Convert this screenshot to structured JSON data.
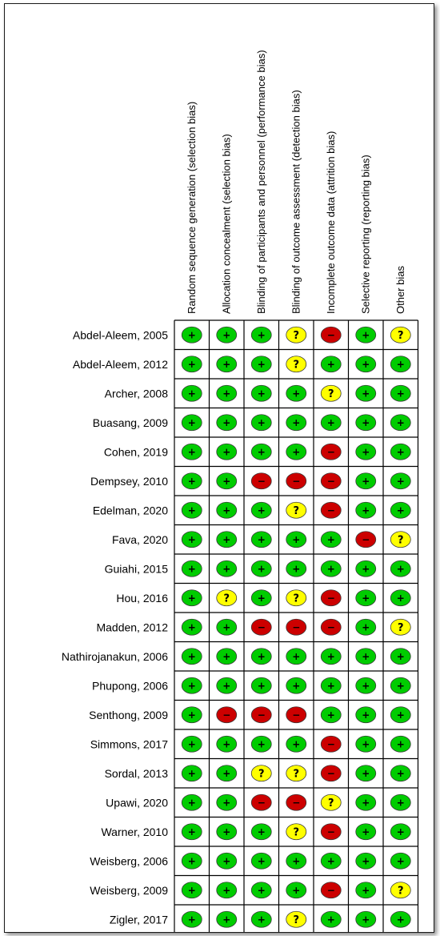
{
  "chart_data": {
    "type": "table",
    "columns": [
      "Random sequence generation (selection bias)",
      "Allocation concealment (selection bias)",
      "Blinding of participants and personnel (performance bias)",
      "Blinding of outcome assessment (detection bias)",
      "Incomplete outcome data (attrition bias)",
      "Selective reporting (reporting bias)",
      "Other bias"
    ],
    "rows": [
      {
        "study": "Abdel-Aleem, 2005",
        "ratings": [
          "low",
          "low",
          "low",
          "unclear",
          "high",
          "low",
          "unclear"
        ]
      },
      {
        "study": "Abdel-Aleem, 2012",
        "ratings": [
          "low",
          "low",
          "low",
          "unclear",
          "low",
          "low",
          "low"
        ]
      },
      {
        "study": "Archer, 2008",
        "ratings": [
          "low",
          "low",
          "low",
          "low",
          "unclear",
          "low",
          "low"
        ]
      },
      {
        "study": "Buasang, 2009",
        "ratings": [
          "low",
          "low",
          "low",
          "low",
          "low",
          "low",
          "low"
        ]
      },
      {
        "study": "Cohen, 2019",
        "ratings": [
          "low",
          "low",
          "low",
          "low",
          "high",
          "low",
          "low"
        ]
      },
      {
        "study": "Dempsey, 2010",
        "ratings": [
          "low",
          "low",
          "high",
          "high",
          "high",
          "low",
          "low"
        ]
      },
      {
        "study": "Edelman, 2020",
        "ratings": [
          "low",
          "low",
          "low",
          "unclear",
          "high",
          "low",
          "low"
        ]
      },
      {
        "study": "Fava, 2020",
        "ratings": [
          "low",
          "low",
          "low",
          "low",
          "low",
          "high",
          "unclear"
        ]
      },
      {
        "study": "Guiahi, 2015",
        "ratings": [
          "low",
          "low",
          "low",
          "low",
          "low",
          "low",
          "low"
        ]
      },
      {
        "study": "Hou, 2016",
        "ratings": [
          "low",
          "unclear",
          "low",
          "unclear",
          "high",
          "low",
          "low"
        ]
      },
      {
        "study": "Madden, 2012",
        "ratings": [
          "low",
          "low",
          "high",
          "high",
          "high",
          "low",
          "unclear"
        ]
      },
      {
        "study": "Nathirojanakun, 2006",
        "ratings": [
          "low",
          "low",
          "low",
          "low",
          "low",
          "low",
          "low"
        ]
      },
      {
        "study": "Phupong, 2006",
        "ratings": [
          "low",
          "low",
          "low",
          "low",
          "low",
          "low",
          "low"
        ]
      },
      {
        "study": "Senthong, 2009",
        "ratings": [
          "low",
          "high",
          "high",
          "high",
          "low",
          "low",
          "low"
        ]
      },
      {
        "study": "Simmons, 2017",
        "ratings": [
          "low",
          "low",
          "low",
          "low",
          "high",
          "low",
          "low"
        ]
      },
      {
        "study": "Sordal, 2013",
        "ratings": [
          "low",
          "low",
          "unclear",
          "unclear",
          "high",
          "low",
          "low"
        ]
      },
      {
        "study": "Upawi, 2020",
        "ratings": [
          "low",
          "low",
          "high",
          "high",
          "unclear",
          "low",
          "low"
        ]
      },
      {
        "study": "Warner, 2010",
        "ratings": [
          "low",
          "low",
          "low",
          "unclear",
          "high",
          "low",
          "low"
        ]
      },
      {
        "study": "Weisberg, 2006",
        "ratings": [
          "low",
          "low",
          "low",
          "low",
          "low",
          "low",
          "low"
        ]
      },
      {
        "study": "Weisberg, 2009",
        "ratings": [
          "low",
          "low",
          "low",
          "low",
          "high",
          "low",
          "unclear"
        ]
      },
      {
        "study": "Zigler, 2017",
        "ratings": [
          "low",
          "low",
          "low",
          "unclear",
          "low",
          "low",
          "low"
        ]
      }
    ],
    "legend": {
      "low": {
        "symbol": "+",
        "color": "#00cc00"
      },
      "high": {
        "symbol": "−",
        "color": "#cc0000"
      },
      "unclear": {
        "symbol": "?",
        "color": "#ffff00"
      }
    }
  }
}
